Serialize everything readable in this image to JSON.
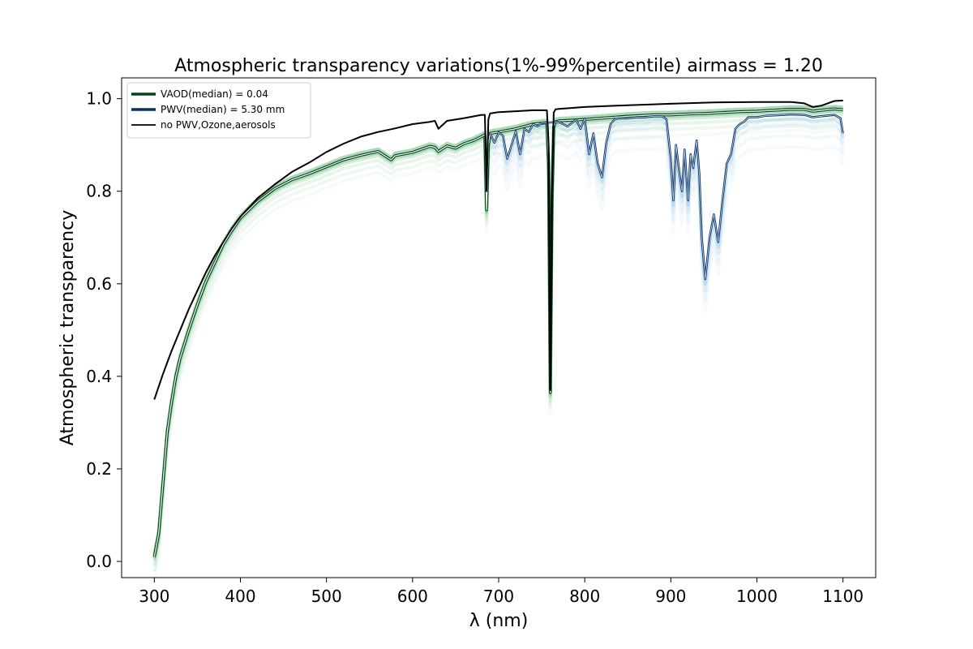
{
  "chart_data": {
    "type": "line",
    "title": "Atmospheric transparency variations(1%-99%percentile) airmass = 1.20",
    "xlabel": "λ (nm)",
    "ylabel": "Atmospheric transparency",
    "xlim": [
      262,
      1138
    ],
    "ylim": [
      -0.035,
      1.045
    ],
    "xticks": [
      300,
      400,
      500,
      600,
      700,
      800,
      900,
      1000,
      1100
    ],
    "yticks": [
      0.0,
      0.2,
      0.4,
      0.6,
      0.8,
      1.0
    ],
    "xtick_labels": [
      "300",
      "400",
      "500",
      "600",
      "700",
      "800",
      "900",
      "1000",
      "1100"
    ],
    "ytick_labels": [
      "0.0",
      "0.2",
      "0.4",
      "0.6",
      "0.8",
      "1.0"
    ],
    "legend_position": "top-left",
    "grid": false,
    "colors": {
      "vaod": "#00441b",
      "vaod_band": "#41ab5d",
      "pwv": "#08306b",
      "pwv_band": "#6baed6",
      "clear": "#000000",
      "median_highlight": "#ffffff"
    },
    "legend": [
      {
        "label": "VAOD(median) = 0.04",
        "color": "#00441b"
      },
      {
        "label": "PWV(median) = 5.30 mm",
        "color": "#08306b"
      },
      {
        "label": "no PWV,Ozone,aerosols",
        "color": "#000000"
      }
    ],
    "series": [
      {
        "id": "clear",
        "x": [
          300,
          310,
          320,
          330,
          340,
          350,
          360,
          370,
          380,
          390,
          400,
          420,
          440,
          460,
          480,
          500,
          520,
          540,
          560,
          580,
          600,
          620,
          626,
          630,
          640,
          660,
          680,
          684,
          686,
          688,
          690,
          700,
          720,
          740,
          756,
          758,
          760,
          762,
          764,
          766,
          770,
          800,
          850,
          900,
          950,
          1000,
          1040,
          1055,
          1065,
          1075,
          1090,
          1100
        ],
        "y": [
          0.35,
          0.405,
          0.455,
          0.5,
          0.545,
          0.585,
          0.625,
          0.66,
          0.69,
          0.72,
          0.745,
          0.785,
          0.815,
          0.842,
          0.862,
          0.885,
          0.903,
          0.918,
          0.928,
          0.936,
          0.945,
          0.95,
          0.952,
          0.935,
          0.952,
          0.958,
          0.965,
          0.965,
          0.8,
          0.955,
          0.968,
          0.971,
          0.973,
          0.975,
          0.975,
          0.9,
          0.37,
          0.8,
          0.97,
          0.977,
          0.978,
          0.982,
          0.986,
          0.989,
          0.992,
          0.993,
          0.993,
          0.99,
          0.982,
          0.985,
          0.995,
          0.996
        ]
      },
      {
        "id": "vaod_median",
        "name": "VAOD(median) = 0.04",
        "x": [
          300,
          305,
          310,
          315,
          320,
          325,
          330,
          340,
          350,
          360,
          370,
          380,
          390,
          400,
          420,
          440,
          460,
          480,
          500,
          520,
          540,
          560,
          575,
          580,
          600,
          620,
          626,
          630,
          640,
          650,
          660,
          670,
          680,
          684,
          686,
          688,
          690,
          700,
          720,
          740,
          756,
          758,
          760,
          762,
          764,
          766,
          770,
          800,
          820,
          850,
          880,
          900,
          920,
          940,
          960,
          980,
          1000,
          1020,
          1040,
          1055,
          1065,
          1075,
          1090,
          1100
        ],
        "y": [
          0.01,
          0.06,
          0.17,
          0.28,
          0.345,
          0.4,
          0.44,
          0.5,
          0.555,
          0.605,
          0.645,
          0.685,
          0.715,
          0.742,
          0.778,
          0.806,
          0.825,
          0.838,
          0.853,
          0.868,
          0.878,
          0.886,
          0.868,
          0.877,
          0.884,
          0.897,
          0.895,
          0.886,
          0.898,
          0.893,
          0.903,
          0.909,
          0.918,
          0.922,
          0.76,
          0.9,
          0.925,
          0.928,
          0.935,
          0.945,
          0.948,
          0.86,
          0.365,
          0.78,
          0.94,
          0.95,
          0.952,
          0.955,
          0.958,
          0.962,
          0.965,
          0.965,
          0.967,
          0.968,
          0.97,
          0.972,
          0.973,
          0.975,
          0.977,
          0.977,
          0.973,
          0.975,
          0.978,
          0.976
        ]
      },
      {
        "id": "pwv_median",
        "name": "PWV(median) = 5.30 mm",
        "x": [
          690,
          695,
          700,
          705,
          710,
          715,
          720,
          725,
          730,
          735,
          740,
          745,
          750,
          756,
          770,
          780,
          790,
          795,
          800,
          805,
          810,
          815,
          820,
          825,
          830,
          835,
          840,
          850,
          860,
          870,
          880,
          890,
          895,
          900,
          903,
          906,
          910,
          913,
          916,
          920,
          923,
          926,
          930,
          933,
          936,
          940,
          945,
          950,
          955,
          960,
          965,
          970,
          975,
          980,
          985,
          990,
          1000,
          1010,
          1020,
          1040,
          1055,
          1065,
          1075,
          1090,
          1097,
          1100
        ],
        "y": [
          0.925,
          0.905,
          0.927,
          0.92,
          0.87,
          0.9,
          0.93,
          0.88,
          0.935,
          0.928,
          0.945,
          0.94,
          0.948,
          0.948,
          0.95,
          0.94,
          0.955,
          0.935,
          0.957,
          0.88,
          0.925,
          0.86,
          0.83,
          0.905,
          0.945,
          0.956,
          0.958,
          0.958,
          0.96,
          0.96,
          0.962,
          0.962,
          0.955,
          0.87,
          0.78,
          0.9,
          0.84,
          0.8,
          0.89,
          0.78,
          0.88,
          0.85,
          0.91,
          0.84,
          0.7,
          0.61,
          0.7,
          0.75,
          0.69,
          0.78,
          0.86,
          0.88,
          0.935,
          0.945,
          0.95,
          0.96,
          0.96,
          0.963,
          0.964,
          0.966,
          0.965,
          0.96,
          0.962,
          0.965,
          0.958,
          0.925
        ]
      }
    ]
  }
}
